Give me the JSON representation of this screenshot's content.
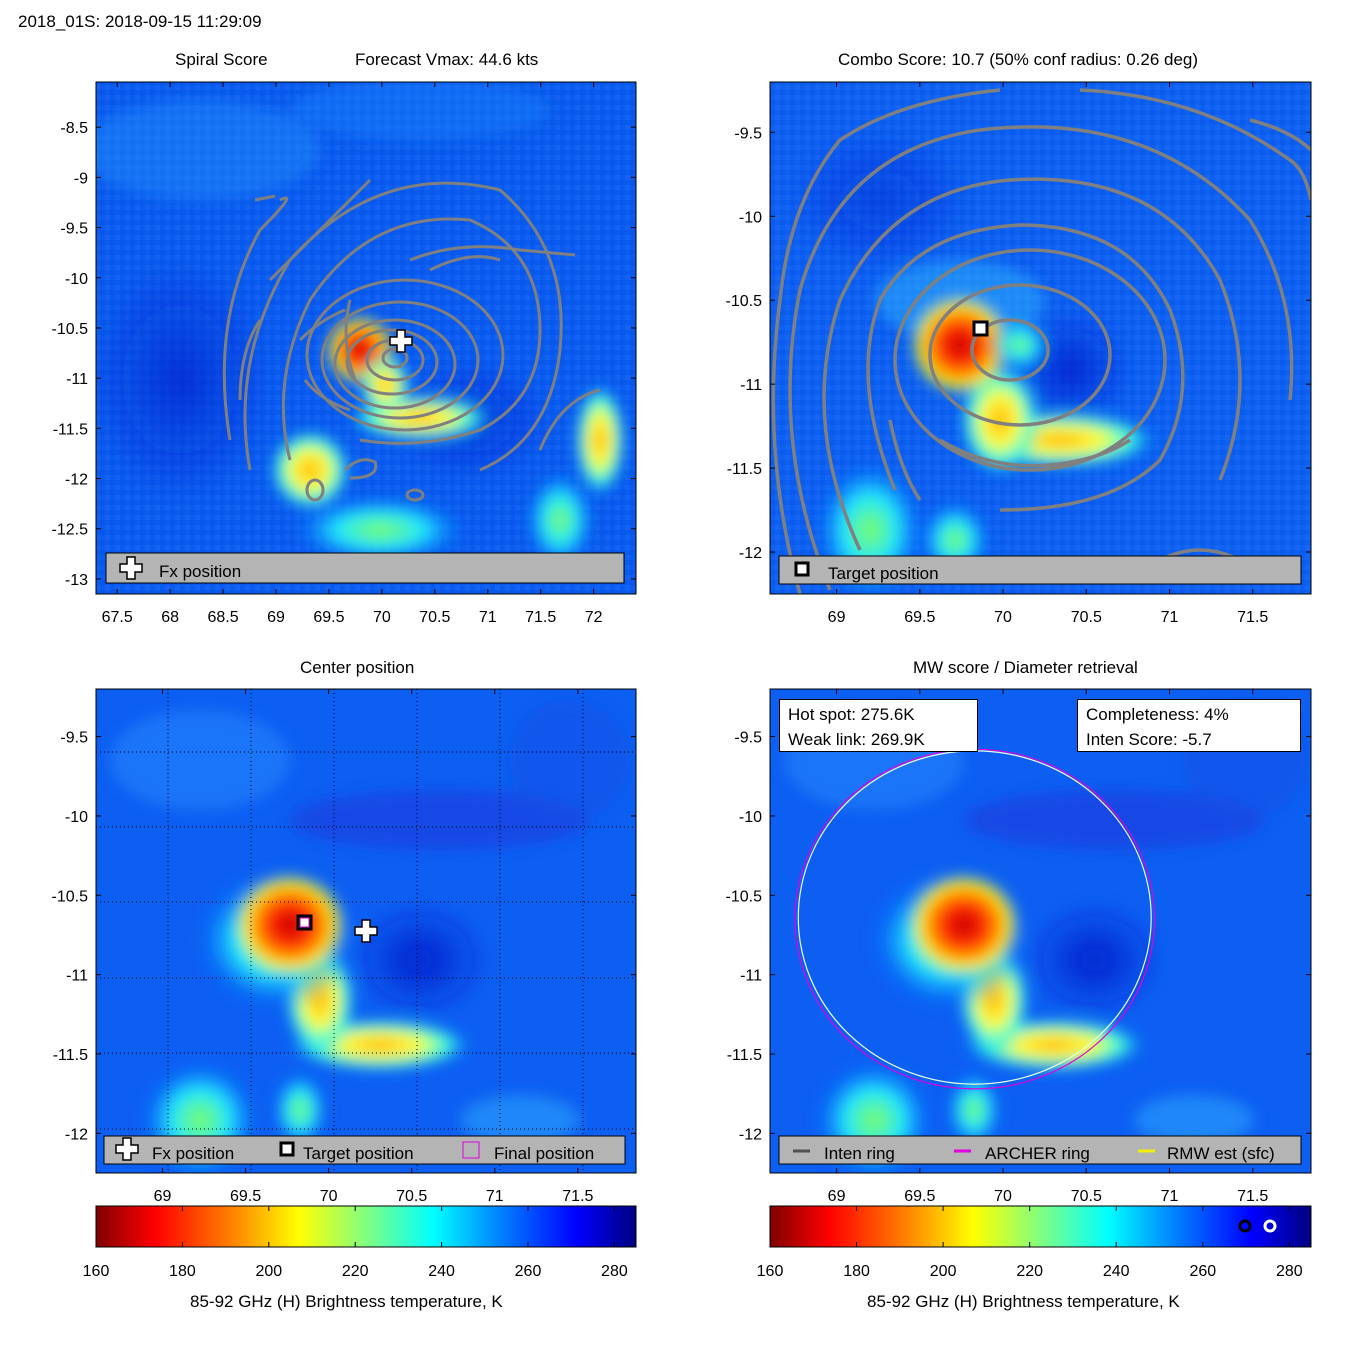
{
  "header": {
    "title": "2018_01S: 2018-09-15 11:29:09"
  },
  "panels": {
    "spiral": {
      "title_left": "Spiral Score",
      "title_right": "Forecast Vmax: 44.6 kts",
      "legend": [
        "Fx position"
      ]
    },
    "combo": {
      "title": "Combo Score: 10.7  (50% conf radius: 0.26 deg)",
      "legend": [
        "Target position"
      ]
    },
    "center": {
      "title": "Center position",
      "legend": [
        "Fx position",
        "Target position",
        "Final position"
      ]
    },
    "mw": {
      "title": "MW score / Diameter retrieval",
      "hot_spot": "Hot spot: 275.6K",
      "weak_link": "Weak link: 269.9K",
      "completeness": "Completeness: 4%",
      "inten_score": "Inten Score: -5.7",
      "legend": [
        "Inten ring",
        "ARCHER ring",
        "RMW est (sfc)"
      ]
    }
  },
  "colorbar": {
    "label": "85-92 GHz (H) Brightness temperature, K"
  },
  "colors": {
    "contour": "#808080",
    "archer_ring": "#e000e0",
    "rmw_ring": "#f0f000",
    "inten_ring": "#505050",
    "legend_bg": "#b4b4b4"
  },
  "chart_data": [
    {
      "type": "heatmap",
      "name": "spiral-score",
      "xlim": [
        67.3,
        72.4
      ],
      "ylim": [
        -13.15,
        -8.05
      ],
      "xticks": [
        "67.5",
        "68",
        "68.5",
        "69",
        "69.5",
        "70",
        "70.5",
        "71",
        "71.5",
        "72"
      ],
      "yticks": [
        "-8.5",
        "-9",
        "-9.5",
        "-10",
        "-10.5",
        "-11",
        "-11.5",
        "-12",
        "-12.5",
        "-13"
      ],
      "fx_position": [
        70.18,
        -10.65
      ]
    },
    {
      "type": "heatmap",
      "name": "combo-score",
      "xlim": [
        68.6,
        71.85
      ],
      "ylim": [
        -12.25,
        -9.2
      ],
      "xticks": [
        "69",
        "69.5",
        "70",
        "70.5",
        "71",
        "71.5"
      ],
      "yticks": [
        "-9.5",
        "-10",
        "-10.5",
        "-11",
        "-11.5",
        "-12"
      ],
      "target_position": [
        69.83,
        -10.63
      ]
    },
    {
      "type": "heatmap",
      "name": "center-position",
      "xlim": [
        68.6,
        71.85
      ],
      "ylim": [
        -12.25,
        -9.2
      ],
      "xticks": [
        "69",
        "69.5",
        "70",
        "70.5",
        "71",
        "71.5"
      ],
      "yticks": [
        "-9.5",
        "-10",
        "-10.5",
        "-11",
        "-11.5",
        "-12"
      ],
      "fx_position": [
        70.19,
        -10.69
      ],
      "target_position": [
        69.83,
        -10.63
      ],
      "final_position": [
        69.83,
        -10.63
      ]
    },
    {
      "type": "heatmap",
      "name": "mw-score",
      "xlim": [
        68.6,
        71.85
      ],
      "ylim": [
        -12.25,
        -9.2
      ],
      "xticks": [
        "69",
        "69.5",
        "70",
        "70.5",
        "71",
        "71.5"
      ],
      "yticks": [
        "-9.5",
        "-10",
        "-10.5",
        "-11",
        "-11.5",
        "-12"
      ],
      "archer_ring": {
        "center": [
          69.83,
          -10.65
        ],
        "rx_deg": 1.08,
        "ry_deg": 1.07
      },
      "rmw_ring": {
        "center": [
          69.83,
          -10.64
        ],
        "rx_deg": 1.06,
        "ry_deg": 1.05
      }
    },
    {
      "type": "colorbar",
      "range": [
        160,
        285
      ],
      "ticks": [
        "160",
        "180",
        "200",
        "220",
        "240",
        "260",
        "280"
      ]
    }
  ]
}
